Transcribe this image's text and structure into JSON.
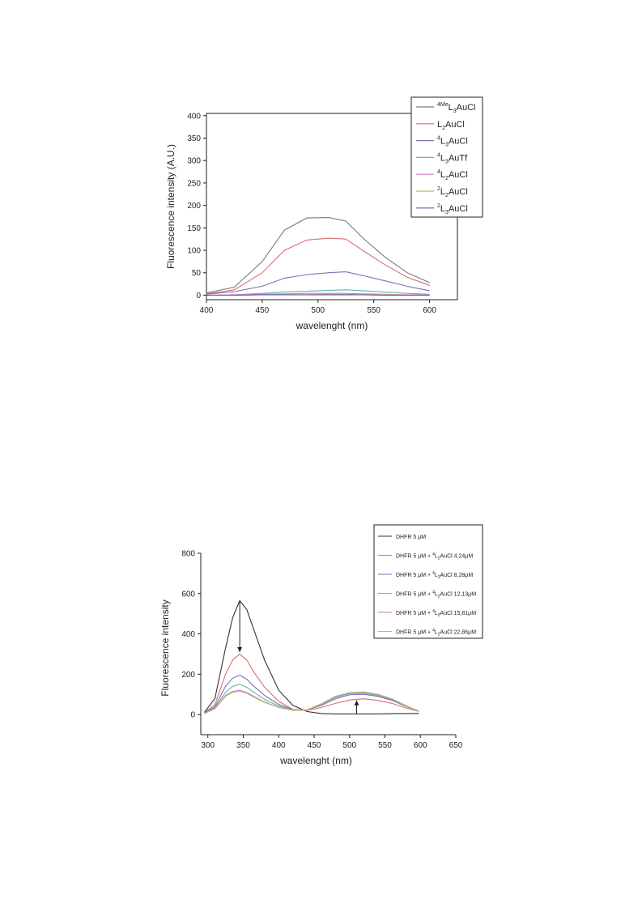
{
  "chart_data": [
    {
      "type": "line",
      "title": "",
      "xlabel": "wavelenght (nm)",
      "ylabel": "Fluorescence intensity (A.U.)",
      "xlim": [
        400,
        625
      ],
      "ylim": [
        -10,
        405
      ],
      "x_ticks": [
        400,
        450,
        500,
        550,
        600
      ],
      "y_ticks": [
        0,
        50,
        100,
        150,
        200,
        250,
        300,
        350,
        400
      ],
      "legend_position": "top-right",
      "x": [
        400,
        425,
        450,
        470,
        490,
        510,
        525,
        540,
        560,
        580,
        600
      ],
      "series": [
        {
          "name": "4MeL3AuCl",
          "sup": "4Me",
          "base": "L",
          "sub": "3",
          "rest": "AuCl",
          "color": "#7a7a7a",
          "values": [
            5,
            18,
            75,
            145,
            172,
            173,
            165,
            128,
            85,
            50,
            28
          ]
        },
        {
          "name": "L2AuCl",
          "sup": "",
          "base": "L",
          "sub": "2",
          "rest": "AuCl",
          "color": "#d9706e",
          "values": [
            3,
            12,
            50,
            100,
            123,
            127,
            125,
            100,
            68,
            40,
            22
          ]
        },
        {
          "name": "4L3AuCl",
          "sup": "4",
          "base": "L",
          "sub": "3",
          "rest": "AuCl",
          "color": "#7f6fbd",
          "values": [
            2,
            8,
            20,
            38,
            46,
            50,
            52,
            44,
            32,
            20,
            10
          ]
        },
        {
          "name": "4L3AuTf",
          "sup": "4",
          "base": "L",
          "sub": "3",
          "rest": "AuTf",
          "color": "#5fb8a3",
          "values": [
            0,
            1,
            4,
            7,
            9,
            11,
            12,
            10,
            7,
            4,
            2
          ]
        },
        {
          "name": "4L2AuCl",
          "sup": "4",
          "base": "L",
          "sub": "2",
          "rest": "AuCl",
          "color": "#cf78cf",
          "values": [
            0,
            1,
            2,
            3,
            4,
            4,
            4,
            3,
            2,
            1,
            1
          ]
        },
        {
          "name": "2L2AuCl",
          "sup": "2",
          "base": "L",
          "sub": "2",
          "rest": "AuCl",
          "color": "#b7b86a",
          "values": [
            0,
            0,
            1,
            1,
            1,
            2,
            2,
            1,
            1,
            0,
            0
          ]
        },
        {
          "name": "2L3AuCl",
          "sup": "2",
          "base": "L",
          "sub": "3",
          "rest": "AuCl",
          "color": "#6b56b8",
          "values": [
            0,
            0,
            1,
            1,
            1,
            1,
            1,
            1,
            0,
            0,
            0
          ]
        }
      ]
    },
    {
      "type": "line",
      "title": "",
      "xlabel": "wavelenght (nm)",
      "ylabel": "Fluorescence intensity",
      "xlim": [
        290,
        650
      ],
      "ylim": [
        -100,
        800
      ],
      "x_ticks": [
        300,
        350,
        400,
        450,
        500,
        550,
        600,
        650
      ],
      "y_ticks": [
        0,
        200,
        400,
        600,
        800
      ],
      "legend_position": "top-right",
      "x": [
        295,
        310,
        325,
        335,
        345,
        355,
        365,
        380,
        400,
        420,
        440,
        460,
        480,
        500,
        520,
        540,
        560,
        580,
        598
      ],
      "series": [
        {
          "name": "DHFR 5 μM",
          "prefix": "DHFR 5 μM",
          "sup": "",
          "base": "",
          "sub": "",
          "rest": "",
          "color": "#333333",
          "values": [
            10,
            80,
            330,
            480,
            565,
            520,
            420,
            270,
            120,
            45,
            15,
            5,
            3,
            3,
            3,
            3,
            4,
            5,
            5
          ]
        },
        {
          "name": "DHFR 5 μM + 4L2AuCl 4,24μM",
          "prefix": "DHFR 5 μM + ",
          "sup": "4",
          "base": "L",
          "sub": "2",
          "rest": "AuCl 4,24μM",
          "color": "#d9706e",
          "values": [
            8,
            50,
            200,
            270,
            300,
            270,
            210,
            135,
            65,
            25,
            20,
            35,
            55,
            72,
            78,
            70,
            55,
            32,
            15
          ]
        },
        {
          "name": "DHFR 5 μM + 4L2AuCl 8,28μM",
          "prefix": "DHFR 5 μM + ",
          "sup": "4",
          "base": "L",
          "sub": "2",
          "rest": "AuCl  8,28μM",
          "color": "#7f6fbd",
          "values": [
            7,
            40,
            140,
            180,
            195,
            175,
            140,
            95,
            50,
            24,
            22,
            45,
            78,
            98,
            100,
            90,
            70,
            40,
            16
          ]
        },
        {
          "name": "DHFR 5 μM + 4L2AuCl 12,13μM",
          "prefix": "DHFR 5 μM + ",
          "sup": "4",
          "base": "L",
          "sub": "2",
          "rest": "AuCl  12,13μM",
          "color": "#5fb8a3",
          "values": [
            6,
            34,
            110,
            140,
            150,
            135,
            110,
            75,
            42,
            22,
            22,
            50,
            85,
            104,
            106,
            95,
            74,
            42,
            16
          ]
        },
        {
          "name": "DHFR 5 μM + 4L2AuCl 15,81μM",
          "prefix": "DHFR 5 μM + ",
          "sup": "4",
          "base": "L",
          "sub": "2",
          "rest": "AuCl  15,81μM",
          "color": "#cf78cf",
          "values": [
            5,
            30,
            95,
            115,
            120,
            110,
            90,
            62,
            36,
            21,
            23,
            52,
            88,
            107,
            110,
            98,
            76,
            43,
            16
          ]
        },
        {
          "name": "DHFR 5 μM + 4L2AuCl 22,86μM",
          "prefix": "DHFR 5 μM + ",
          "sup": "4",
          "base": "L",
          "sub": "2",
          "rest": "AuCl  22,86μM",
          "color": "#b7b86a",
          "values": [
            5,
            28,
            90,
            110,
            115,
            105,
            86,
            60,
            35,
            21,
            23,
            53,
            90,
            109,
            112,
            100,
            78,
            44,
            16
          ]
        }
      ],
      "arrows": [
        {
          "x": 345,
          "y_from": 560,
          "y_to": 310,
          "direction": "down"
        },
        {
          "x": 510,
          "y_from": 5,
          "y_to": 70,
          "direction": "up"
        }
      ]
    }
  ]
}
